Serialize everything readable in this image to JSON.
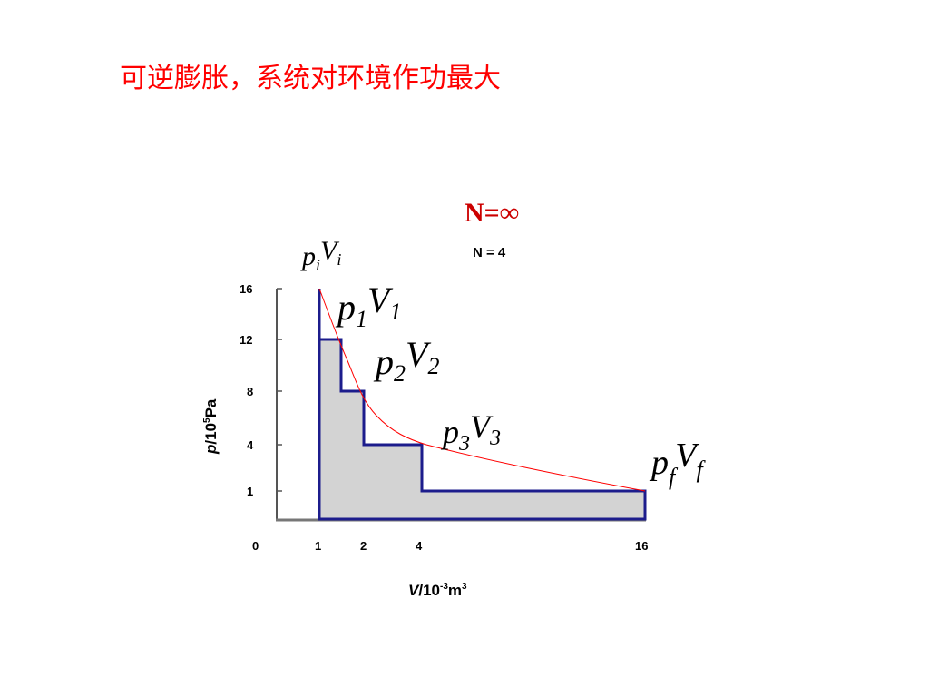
{
  "header": {
    "title": "可逆膨胀，系统对环境作功最大"
  },
  "annotations": {
    "n_infinite": "N=∞",
    "n_four": "N = 4"
  },
  "points": [
    {
      "p": "p",
      "v": "V",
      "subscript": "i"
    },
    {
      "p": "p",
      "v": "V",
      "subscript": "1"
    },
    {
      "p": "p",
      "v": "V",
      "subscript": "2"
    },
    {
      "p": "p",
      "v": "V",
      "subscript": "3"
    },
    {
      "p": "p",
      "v": "V",
      "subscript": "f"
    }
  ],
  "y_axis": {
    "symbol": "p",
    "text": "/10",
    "exponent": "5",
    "unit": "Pa",
    "ticks": [
      "16",
      "12",
      "8",
      "4",
      "1"
    ]
  },
  "x_axis": {
    "symbol": "V",
    "text": "/10",
    "exponent": "-3",
    "unit": "m",
    "unit_exponent": "3",
    "ticks": [
      "0",
      "1",
      "2",
      "4",
      "16"
    ]
  }
}
